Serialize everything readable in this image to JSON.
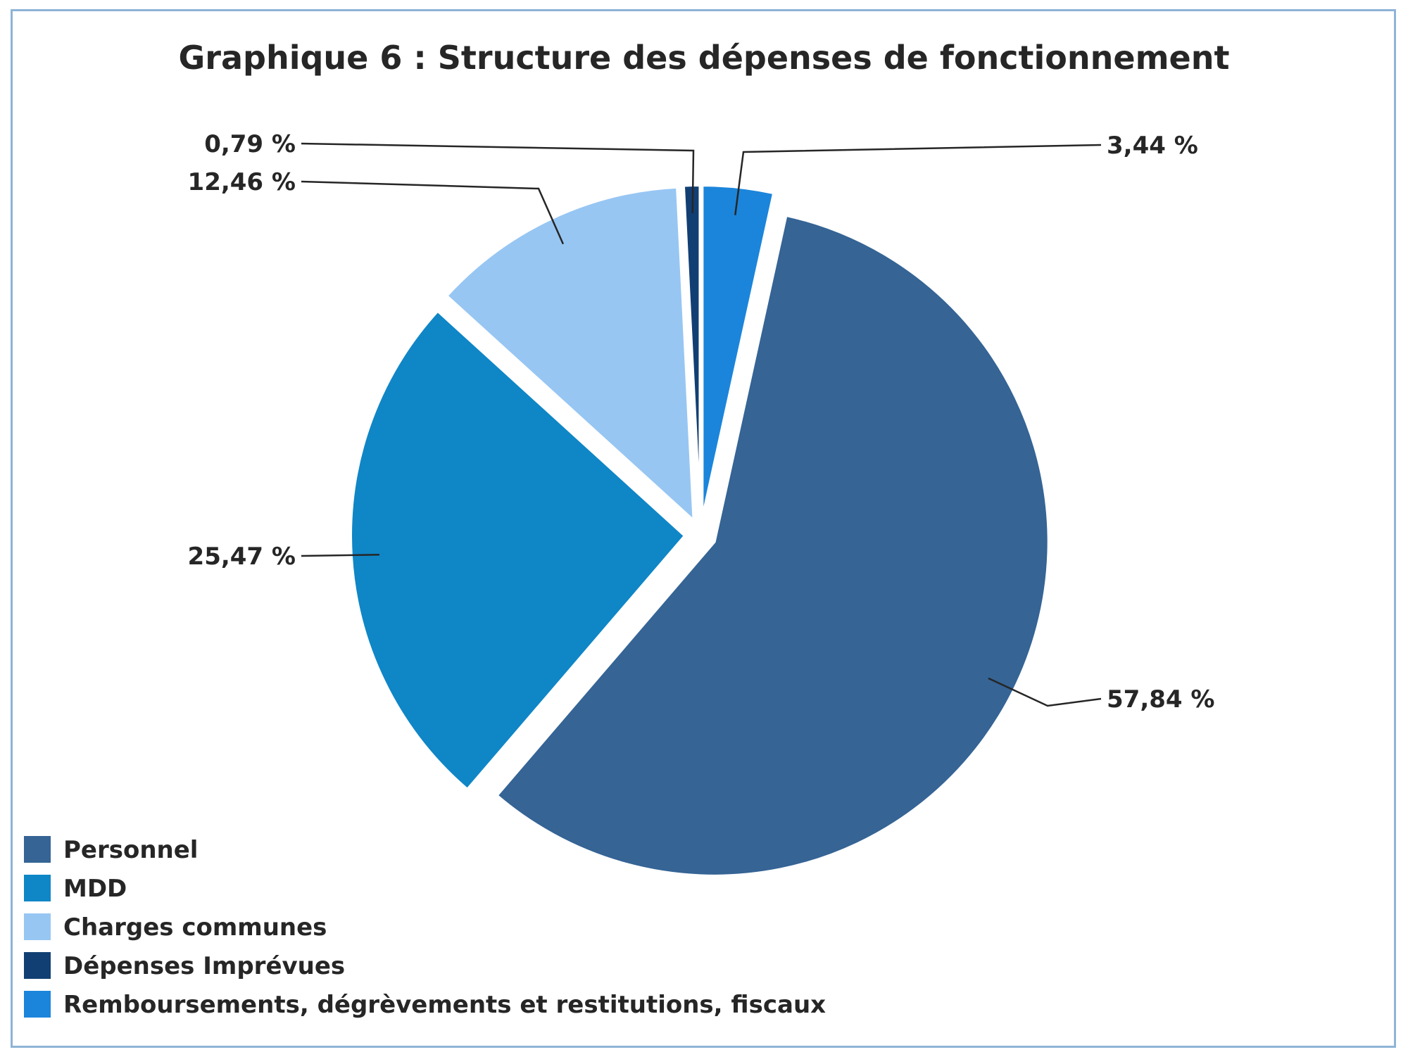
{
  "chart_data": {
    "type": "pie",
    "title": "Graphique 6 : Structure des dépenses de fonctionnement",
    "categories": [
      "Personnel",
      "MDD",
      "Charges communes",
      "Dépenses Imprévues",
      "Remboursements, dégrèvements et restitutions, fiscaux"
    ],
    "values": [
      57.84,
      25.47,
      12.46,
      0.79,
      3.44
    ],
    "value_labels": [
      "57,84 %",
      "25,47 %",
      "12,46 %",
      "0,79 %",
      "3,44 %"
    ],
    "colors": [
      "#356495",
      "#0f86c6",
      "#97c6f3",
      "#123f73",
      "#1b85db"
    ],
    "legend_position": "bottom-left",
    "exploded": true
  }
}
